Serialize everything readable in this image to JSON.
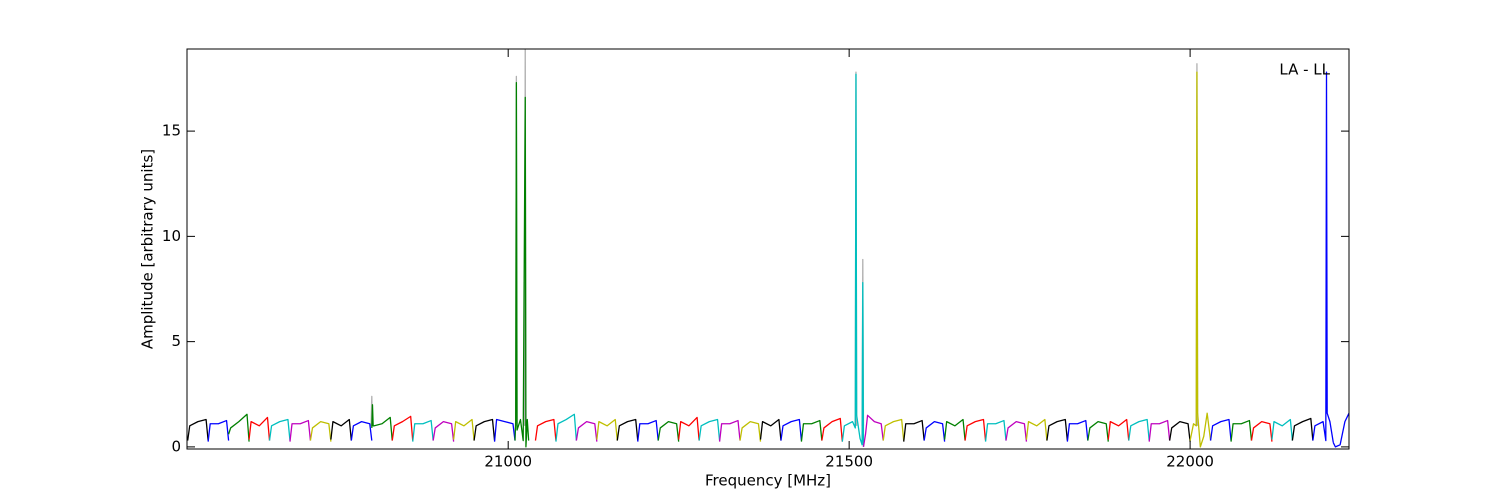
{
  "chart_data": {
    "type": "line",
    "xlabel": "Frequency [MHz]",
    "ylabel": "Amplitude [arbitrary units]",
    "annotation": "LA - LL",
    "xlim": [
      20529,
      22233
    ],
    "ylim": [
      -0.1,
      18.9
    ],
    "xticks": [
      21000,
      21500,
      22000
    ],
    "yticks": [
      0,
      5,
      10,
      15
    ],
    "series": [
      {
        "color": "#b0b0b0",
        "x": [
          20799,
          20800,
          20801,
          null,
          21011,
          21012,
          21013,
          null,
          21024,
          21025,
          21026,
          null,
          21509,
          21510,
          21511,
          null,
          21519,
          21520,
          21521,
          null,
          22009,
          22010,
          22011
        ],
        "values": [
          1.0,
          2.4,
          1.0,
          null,
          1.0,
          17.6,
          1.0,
          null,
          1.0,
          19.0,
          1.0,
          null,
          1.0,
          17.8,
          1.0,
          null,
          1.0,
          8.9,
          1.0,
          null,
          1.0,
          18.2,
          1.0
        ]
      },
      {
        "color": "#000000",
        "x": [
          20530,
          20533,
          20545,
          20557,
          20560
        ],
        "values": [
          0.3,
          1.0,
          1.2,
          1.3,
          0.3
        ]
      },
      {
        "color": "#0000ff",
        "x": [
          20560,
          20563,
          20575,
          20587,
          20590
        ],
        "values": [
          0.25,
          1.1,
          1.1,
          1.25,
          0.3
        ]
      },
      {
        "color": "#008000",
        "x": [
          20590,
          20593,
          20605,
          20617,
          20620
        ],
        "values": [
          0.6,
          0.9,
          1.2,
          1.55,
          0.25
        ]
      },
      {
        "color": "#ff0000",
        "x": [
          20620,
          20623,
          20635,
          20647,
          20650
        ],
        "values": [
          0.35,
          1.2,
          1.0,
          1.4,
          0.3
        ]
      },
      {
        "color": "#00bfbf",
        "x": [
          20650,
          20653,
          20665,
          20677,
          20680
        ],
        "values": [
          0.3,
          1.0,
          1.2,
          1.3,
          0.3
        ]
      },
      {
        "color": "#bf00bf",
        "x": [
          20680,
          20683,
          20695,
          20707,
          20710
        ],
        "values": [
          0.25,
          1.1,
          1.1,
          1.25,
          0.3
        ]
      },
      {
        "color": "#bfbf00",
        "x": [
          20710,
          20713,
          20725,
          20737,
          20740
        ],
        "values": [
          0.3,
          0.9,
          1.2,
          1.1,
          0.25
        ]
      },
      {
        "color": "#000000",
        "x": [
          20740,
          20743,
          20755,
          20767,
          20770
        ],
        "values": [
          0.35,
          1.2,
          1.0,
          1.3,
          0.3
        ]
      },
      {
        "color": "#0000ff",
        "x": [
          20770,
          20773,
          20785,
          20797,
          20800
        ],
        "values": [
          0.3,
          1.0,
          1.2,
          1.1,
          0.3
        ]
      },
      {
        "color": "#008000",
        "x": [
          20800,
          20801,
          20802,
          20803,
          20815,
          20827,
          20830
        ],
        "values": [
          0.9,
          2.0,
          1.0,
          1.0,
          1.1,
          1.4,
          0.3
        ]
      },
      {
        "color": "#ff0000",
        "x": [
          20830,
          20833,
          20845,
          20857,
          20860
        ],
        "values": [
          0.3,
          1.0,
          1.2,
          1.45,
          0.3
        ]
      },
      {
        "color": "#00bfbf",
        "x": [
          20860,
          20863,
          20875,
          20887,
          20890
        ],
        "values": [
          0.25,
          1.1,
          1.1,
          1.25,
          0.3
        ]
      },
      {
        "color": "#bf00bf",
        "x": [
          20890,
          20893,
          20905,
          20917,
          20920
        ],
        "values": [
          0.3,
          0.9,
          1.2,
          1.1,
          0.25
        ]
      },
      {
        "color": "#bfbf00",
        "x": [
          20920,
          20923,
          20935,
          20947,
          20950
        ],
        "values": [
          0.35,
          1.2,
          1.0,
          1.3,
          0.3
        ]
      },
      {
        "color": "#000000",
        "x": [
          20950,
          20953,
          20965,
          20977,
          20980
        ],
        "values": [
          0.3,
          1.0,
          1.2,
          1.3,
          0.3
        ]
      },
      {
        "color": "#0000ff",
        "x": [
          20980,
          20983,
          20995,
          21007,
          21010
        ],
        "values": [
          0.25,
          1.3,
          1.2,
          1.1,
          0.3
        ]
      },
      {
        "color": "#008000",
        "x": [
          21010,
          21011,
          21012,
          21013,
          21018,
          21022,
          21025,
          21026,
          21028,
          21030
        ],
        "values": [
          0.3,
          1.2,
          17.3,
          0.8,
          1.3,
          0.3,
          16.6,
          0.0,
          1.3,
          0.3
        ]
      },
      {
        "color": "#ff0000",
        "x": [
          21040,
          21043,
          21055,
          21067,
          21070
        ],
        "values": [
          0.3,
          1.0,
          1.2,
          1.3,
          0.3
        ]
      },
      {
        "color": "#00bfbf",
        "x": [
          21070,
          21073,
          21085,
          21097,
          21100
        ],
        "values": [
          0.25,
          1.1,
          1.3,
          1.55,
          0.3
        ]
      },
      {
        "color": "#bf00bf",
        "x": [
          21100,
          21103,
          21115,
          21127,
          21130
        ],
        "values": [
          0.3,
          0.9,
          1.2,
          1.1,
          0.25
        ]
      },
      {
        "color": "#bfbf00",
        "x": [
          21130,
          21133,
          21145,
          21157,
          21160
        ],
        "values": [
          0.35,
          1.2,
          1.0,
          1.3,
          0.3
        ]
      },
      {
        "color": "#000000",
        "x": [
          21160,
          21163,
          21175,
          21187,
          21190
        ],
        "values": [
          0.3,
          1.0,
          1.2,
          1.3,
          0.3
        ]
      },
      {
        "color": "#0000ff",
        "x": [
          21190,
          21193,
          21205,
          21217,
          21220
        ],
        "values": [
          0.25,
          1.1,
          1.1,
          1.25,
          0.3
        ]
      },
      {
        "color": "#008000",
        "x": [
          21220,
          21223,
          21235,
          21247,
          21250
        ],
        "values": [
          0.3,
          0.9,
          1.2,
          1.1,
          0.25
        ]
      },
      {
        "color": "#ff0000",
        "x": [
          21250,
          21253,
          21265,
          21277,
          21280
        ],
        "values": [
          0.35,
          1.2,
          1.0,
          1.4,
          0.3
        ]
      },
      {
        "color": "#00bfbf",
        "x": [
          21280,
          21283,
          21295,
          21307,
          21310
        ],
        "values": [
          0.3,
          1.0,
          1.2,
          1.3,
          0.3
        ]
      },
      {
        "color": "#bf00bf",
        "x": [
          21310,
          21313,
          21325,
          21337,
          21340
        ],
        "values": [
          0.25,
          1.1,
          1.1,
          1.25,
          0.3
        ]
      },
      {
        "color": "#bfbf00",
        "x": [
          21340,
          21343,
          21355,
          21367,
          21370
        ],
        "values": [
          0.3,
          0.9,
          1.2,
          1.1,
          0.25
        ]
      },
      {
        "color": "#000000",
        "x": [
          21370,
          21373,
          21385,
          21397,
          21400
        ],
        "values": [
          0.35,
          1.2,
          1.0,
          1.3,
          0.3
        ]
      },
      {
        "color": "#0000ff",
        "x": [
          21400,
          21403,
          21415,
          21427,
          21430
        ],
        "values": [
          0.3,
          1.0,
          1.2,
          1.3,
          0.3
        ]
      },
      {
        "color": "#008000",
        "x": [
          21430,
          21433,
          21445,
          21457,
          21460
        ],
        "values": [
          0.25,
          1.1,
          1.1,
          1.25,
          0.3
        ]
      },
      {
        "color": "#ff0000",
        "x": [
          21460,
          21463,
          21475,
          21487,
          21490
        ],
        "values": [
          0.3,
          0.9,
          1.2,
          1.35,
          0.25
        ]
      },
      {
        "color": "#00bfbf",
        "x": [
          21490,
          21493,
          21505,
          21509,
          21510,
          21511,
          21516,
          21519,
          21520,
          21521
        ],
        "values": [
          0.25,
          1.0,
          1.2,
          0.9,
          17.7,
          1.5,
          0.4,
          0.1,
          7.8,
          0.0
        ]
      },
      {
        "color": "#bf00bf",
        "x": [
          21521,
          21524,
          21527,
          21537,
          21547,
          21550
        ],
        "values": [
          0.0,
          0.6,
          1.5,
          1.2,
          1.1,
          0.3
        ]
      },
      {
        "color": "#bfbf00",
        "x": [
          21550,
          21553,
          21565,
          21577,
          21580
        ],
        "values": [
          0.3,
          1.0,
          1.2,
          1.3,
          0.3
        ]
      },
      {
        "color": "#000000",
        "x": [
          21580,
          21583,
          21595,
          21607,
          21610
        ],
        "values": [
          0.25,
          1.1,
          1.1,
          1.25,
          0.3
        ]
      },
      {
        "color": "#0000ff",
        "x": [
          21610,
          21613,
          21625,
          21637,
          21640
        ],
        "values": [
          0.3,
          0.9,
          1.2,
          1.1,
          0.25
        ]
      },
      {
        "color": "#008000",
        "x": [
          21640,
          21643,
          21655,
          21667,
          21670
        ],
        "values": [
          0.35,
          1.2,
          1.0,
          1.3,
          0.3
        ]
      },
      {
        "color": "#ff0000",
        "x": [
          21670,
          21673,
          21685,
          21697,
          21700
        ],
        "values": [
          0.3,
          1.0,
          1.2,
          1.3,
          0.3
        ]
      },
      {
        "color": "#00bfbf",
        "x": [
          21700,
          21703,
          21715,
          21727,
          21730
        ],
        "values": [
          0.25,
          1.1,
          1.1,
          1.25,
          0.3
        ]
      },
      {
        "color": "#bf00bf",
        "x": [
          21730,
          21733,
          21745,
          21757,
          21760
        ],
        "values": [
          0.3,
          0.9,
          1.2,
          1.1,
          0.25
        ]
      },
      {
        "color": "#bfbf00",
        "x": [
          21760,
          21763,
          21775,
          21787,
          21790
        ],
        "values": [
          0.35,
          1.2,
          1.0,
          1.3,
          0.3
        ]
      },
      {
        "color": "#000000",
        "x": [
          21790,
          21793,
          21805,
          21817,
          21820
        ],
        "values": [
          0.3,
          1.0,
          1.2,
          1.3,
          0.3
        ]
      },
      {
        "color": "#0000ff",
        "x": [
          21820,
          21823,
          21835,
          21847,
          21850
        ],
        "values": [
          0.25,
          1.1,
          1.1,
          1.25,
          0.3
        ]
      },
      {
        "color": "#008000",
        "x": [
          21850,
          21853,
          21865,
          21877,
          21880
        ],
        "values": [
          0.3,
          0.9,
          1.2,
          1.1,
          0.25
        ]
      },
      {
        "color": "#ff0000",
        "x": [
          21880,
          21883,
          21895,
          21907,
          21910
        ],
        "values": [
          0.35,
          1.2,
          1.0,
          1.3,
          0.3
        ]
      },
      {
        "color": "#00bfbf",
        "x": [
          21910,
          21913,
          21925,
          21937,
          21940
        ],
        "values": [
          0.3,
          1.0,
          1.2,
          1.3,
          0.3
        ]
      },
      {
        "color": "#bf00bf",
        "x": [
          21940,
          21943,
          21955,
          21967,
          21970
        ],
        "values": [
          0.25,
          1.1,
          1.1,
          1.25,
          0.3
        ]
      },
      {
        "color": "#000000",
        "x": [
          21970,
          21973,
          21985,
          21997,
          22000
        ],
        "values": [
          0.3,
          0.9,
          1.2,
          1.1,
          0.25
        ]
      },
      {
        "color": "#bfbf00",
        "x": [
          22000,
          22005,
          22009,
          22010,
          22011,
          22015,
          22020,
          22025,
          22030
        ],
        "values": [
          0.3,
          1.1,
          1.0,
          17.8,
          1.6,
          0.0,
          0.5,
          1.6,
          0.3
        ]
      },
      {
        "color": "#0000ff",
        "x": [
          22030,
          22033,
          22045,
          22057,
          22060
        ],
        "values": [
          0.3,
          1.0,
          1.2,
          1.3,
          0.3
        ]
      },
      {
        "color": "#008000",
        "x": [
          22060,
          22063,
          22075,
          22087,
          22090
        ],
        "values": [
          0.25,
          1.1,
          1.1,
          1.25,
          0.3
        ]
      },
      {
        "color": "#ff0000",
        "x": [
          22090,
          22093,
          22105,
          22117,
          22120
        ],
        "values": [
          0.3,
          0.9,
          1.2,
          1.1,
          0.25
        ]
      },
      {
        "color": "#00bfbf",
        "x": [
          22120,
          22123,
          22135,
          22147,
          22150
        ],
        "values": [
          0.35,
          1.2,
          1.0,
          1.3,
          0.3
        ]
      },
      {
        "color": "#000000",
        "x": [
          22150,
          22153,
          22165,
          22177,
          22180
        ],
        "values": [
          0.3,
          1.0,
          1.2,
          1.35,
          0.3
        ]
      },
      {
        "color": "#0000ff",
        "x": [
          22180,
          22183,
          22195,
          22199,
          22200,
          22201,
          22205,
          22210
        ],
        "values": [
          0.3,
          1.0,
          1.2,
          0.3,
          17.8,
          1.6,
          1.2,
          0.2
        ]
      },
      {
        "color": "#0000ff",
        "x": [
          22210,
          22213,
          22220,
          22227,
          22233
        ],
        "values": [
          0.2,
          0.0,
          0.1,
          1.2,
          1.6
        ]
      }
    ]
  }
}
